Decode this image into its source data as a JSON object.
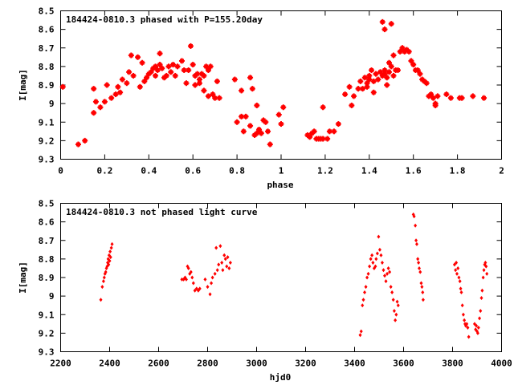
{
  "chart_data": [
    {
      "type": "scatter",
      "title": "184424-0810.3 phased with P=155.20day",
      "xlabel": "phase",
      "ylabel": "I[mag]",
      "xlim": [
        0,
        2
      ],
      "ylim": [
        8.5,
        9.3
      ],
      "y_inverted": true,
      "grid": false,
      "marker_color": "#ff0000",
      "xticks": [
        "0",
        "0.2",
        "0.4",
        "0.6",
        "0.8",
        "1",
        "1.2",
        "1.4",
        "1.6",
        "1.8",
        "2"
      ],
      "yticks": [
        "8.5",
        "8.6",
        "8.7",
        "8.8",
        "8.9",
        "9",
        "9.1",
        "9.2",
        "9.3"
      ],
      "points": [
        [
          0.01,
          8.91
        ],
        [
          0.08,
          9.22
        ],
        [
          0.11,
          9.2
        ],
        [
          0.15,
          8.92
        ],
        [
          0.15,
          9.05
        ],
        [
          0.16,
          8.99
        ],
        [
          0.18,
          9.02
        ],
        [
          0.2,
          8.99
        ],
        [
          0.21,
          8.9
        ],
        [
          0.23,
          8.97
        ],
        [
          0.25,
          8.95
        ],
        [
          0.26,
          8.91
        ],
        [
          0.27,
          8.94
        ],
        [
          0.28,
          8.87
        ],
        [
          0.3,
          8.89
        ],
        [
          0.31,
          8.83
        ],
        [
          0.32,
          8.74
        ],
        [
          0.33,
          8.85
        ],
        [
          0.35,
          8.75
        ],
        [
          0.36,
          8.91
        ],
        [
          0.37,
          8.78
        ],
        [
          0.38,
          8.88
        ],
        [
          0.39,
          8.86
        ],
        [
          0.4,
          8.84
        ],
        [
          0.41,
          8.83
        ],
        [
          0.42,
          8.81
        ],
        [
          0.43,
          8.8
        ],
        [
          0.43,
          8.85
        ],
        [
          0.44,
          8.82
        ],
        [
          0.45,
          8.73
        ],
        [
          0.45,
          8.79
        ],
        [
          0.46,
          8.81
        ],
        [
          0.47,
          8.86
        ],
        [
          0.48,
          8.85
        ],
        [
          0.49,
          8.8
        ],
        [
          0.5,
          8.83
        ],
        [
          0.51,
          8.79
        ],
        [
          0.52,
          8.85
        ],
        [
          0.53,
          8.8
        ],
        [
          0.55,
          8.77
        ],
        [
          0.56,
          8.82
        ],
        [
          0.57,
          8.89
        ],
        [
          0.58,
          8.82
        ],
        [
          0.59,
          8.69
        ],
        [
          0.6,
          8.79
        ],
        [
          0.61,
          8.85
        ],
        [
          0.61,
          8.9
        ],
        [
          0.62,
          8.84
        ],
        [
          0.63,
          8.87
        ],
        [
          0.63,
          8.89
        ],
        [
          0.64,
          8.84
        ],
        [
          0.65,
          8.85
        ],
        [
          0.65,
          8.93
        ],
        [
          0.66,
          8.8
        ],
        [
          0.67,
          8.82
        ],
        [
          0.67,
          8.96
        ],
        [
          0.68,
          8.8
        ],
        [
          0.69,
          8.95
        ],
        [
          0.7,
          8.97
        ],
        [
          0.71,
          8.88
        ],
        [
          0.72,
          8.97
        ],
        [
          0.79,
          8.87
        ],
        [
          0.8,
          9.1
        ],
        [
          0.82,
          9.07
        ],
        [
          0.82,
          8.93
        ],
        [
          0.83,
          9.15
        ],
        [
          0.84,
          9.07
        ],
        [
          0.86,
          8.86
        ],
        [
          0.86,
          9.12
        ],
        [
          0.87,
          8.92
        ],
        [
          0.88,
          9.17
        ],
        [
          0.89,
          9.16
        ],
        [
          0.89,
          9.01
        ],
        [
          0.9,
          9.14
        ],
        [
          0.91,
          9.16
        ],
        [
          0.92,
          9.09
        ],
        [
          0.93,
          9.1
        ],
        [
          0.94,
          9.15
        ],
        [
          0.95,
          9.22
        ],
        [
          0.99,
          9.06
        ],
        [
          1.0,
          9.11
        ],
        [
          1.01,
          9.02
        ],
        [
          1.12,
          9.17
        ],
        [
          1.13,
          9.18
        ],
        [
          1.14,
          9.16
        ],
        [
          1.15,
          9.15
        ],
        [
          1.16,
          9.19
        ],
        [
          1.17,
          9.19
        ],
        [
          1.18,
          9.19
        ],
        [
          1.19,
          9.19
        ],
        [
          1.19,
          9.02
        ],
        [
          1.21,
          9.19
        ],
        [
          1.22,
          9.15
        ],
        [
          1.24,
          9.15
        ],
        [
          1.26,
          9.11
        ],
        [
          1.29,
          8.95
        ],
        [
          1.31,
          8.91
        ],
        [
          1.32,
          9.01
        ],
        [
          1.33,
          8.96
        ],
        [
          1.35,
          8.92
        ],
        [
          1.36,
          8.88
        ],
        [
          1.37,
          8.92
        ],
        [
          1.38,
          8.86
        ],
        [
          1.39,
          8.89
        ],
        [
          1.39,
          8.91
        ],
        [
          1.4,
          8.85
        ],
        [
          1.4,
          8.87
        ],
        [
          1.41,
          8.82
        ],
        [
          1.42,
          8.88
        ],
        [
          1.42,
          8.94
        ],
        [
          1.43,
          8.84
        ],
        [
          1.44,
          8.87
        ],
        [
          1.45,
          8.83
        ],
        [
          1.46,
          8.85
        ],
        [
          1.46,
          8.56
        ],
        [
          1.47,
          8.82
        ],
        [
          1.47,
          8.84
        ],
        [
          1.47,
          8.6
        ],
        [
          1.48,
          8.86
        ],
        [
          1.48,
          8.9
        ],
        [
          1.49,
          8.83
        ],
        [
          1.49,
          8.78
        ],
        [
          1.5,
          8.57
        ],
        [
          1.5,
          8.8
        ],
        [
          1.51,
          8.85
        ],
        [
          1.51,
          8.74
        ],
        [
          1.52,
          8.82
        ],
        [
          1.53,
          8.82
        ],
        [
          1.54,
          8.72
        ],
        [
          1.55,
          8.7
        ],
        [
          1.56,
          8.72
        ],
        [
          1.57,
          8.71
        ],
        [
          1.58,
          8.72
        ],
        [
          1.59,
          8.77
        ],
        [
          1.6,
          8.79
        ],
        [
          1.61,
          8.82
        ],
        [
          1.62,
          8.82
        ],
        [
          1.63,
          8.84
        ],
        [
          1.64,
          8.87
        ],
        [
          1.65,
          8.88
        ],
        [
          1.66,
          8.89
        ],
        [
          1.67,
          8.96
        ],
        [
          1.68,
          8.95
        ],
        [
          1.69,
          8.97
        ],
        [
          1.7,
          9.0
        ],
        [
          1.7,
          9.01
        ],
        [
          1.71,
          8.96
        ],
        [
          1.75,
          8.95
        ],
        [
          1.77,
          8.97
        ],
        [
          1.81,
          8.97
        ],
        [
          1.82,
          8.97
        ],
        [
          1.87,
          8.96
        ],
        [
          1.92,
          8.97
        ]
      ]
    },
    {
      "type": "scatter",
      "title": "184424-0810.3 not phased light curve",
      "xlabel": "hjd0",
      "ylabel": "I[mag]",
      "xlim": [
        2200,
        4000
      ],
      "ylim": [
        8.5,
        9.3
      ],
      "y_inverted": true,
      "grid": false,
      "marker_color": "#ff0000",
      "xticks": [
        "2200",
        "2400",
        "2600",
        "2800",
        "3000",
        "3200",
        "3400",
        "3600",
        "3800",
        "4000"
      ],
      "yticks": [
        "8.5",
        "8.6",
        "8.7",
        "8.8",
        "8.9",
        "9",
        "9.1",
        "9.2",
        "9.3"
      ],
      "points": [
        [
          2364,
          9.02
        ],
        [
          2370,
          8.95
        ],
        [
          2375,
          8.92
        ],
        [
          2378,
          8.9
        ],
        [
          2381,
          8.88
        ],
        [
          2384,
          8.87
        ],
        [
          2387,
          8.85
        ],
        [
          2390,
          8.84
        ],
        [
          2392,
          8.82
        ],
        [
          2394,
          8.8
        ],
        [
          2396,
          8.83
        ],
        [
          2398,
          8.78
        ],
        [
          2400,
          8.81
        ],
        [
          2402,
          8.76
        ],
        [
          2404,
          8.79
        ],
        [
          2407,
          8.74
        ],
        [
          2410,
          8.72
        ],
        [
          2695,
          8.91
        ],
        [
          2702,
          8.91
        ],
        [
          2708,
          8.9
        ],
        [
          2713,
          8.91
        ],
        [
          2718,
          8.84
        ],
        [
          2722,
          8.85
        ],
        [
          2727,
          8.88
        ],
        [
          2732,
          8.87
        ],
        [
          2737,
          8.9
        ],
        [
          2742,
          8.93
        ],
        [
          2748,
          8.97
        ],
        [
          2755,
          8.96
        ],
        [
          2762,
          8.97
        ],
        [
          2768,
          8.96
        ],
        [
          2790,
          8.91
        ],
        [
          2800,
          8.95
        ],
        [
          2810,
          8.99
        ],
        [
          2815,
          8.93
        ],
        [
          2820,
          8.9
        ],
        [
          2830,
          8.88
        ],
        [
          2835,
          8.74
        ],
        [
          2840,
          8.86
        ],
        [
          2845,
          8.83
        ],
        [
          2852,
          8.73
        ],
        [
          2858,
          8.82
        ],
        [
          2862,
          8.86
        ],
        [
          2868,
          8.78
        ],
        [
          2873,
          8.8
        ],
        [
          2878,
          8.84
        ],
        [
          2882,
          8.79
        ],
        [
          2888,
          8.85
        ],
        [
          2893,
          8.82
        ],
        [
          3423,
          9.21
        ],
        [
          3427,
          9.19
        ],
        [
          3432,
          9.05
        ],
        [
          3436,
          9.02
        ],
        [
          3441,
          8.98
        ],
        [
          3446,
          8.95
        ],
        [
          3451,
          8.9
        ],
        [
          3456,
          8.88
        ],
        [
          3461,
          8.84
        ],
        [
          3466,
          8.8
        ],
        [
          3471,
          8.78
        ],
        [
          3475,
          8.82
        ],
        [
          3480,
          8.85
        ],
        [
          3485,
          8.84
        ],
        [
          3488,
          8.8
        ],
        [
          3493,
          8.77
        ],
        [
          3498,
          8.68
        ],
        [
          3503,
          8.75
        ],
        [
          3508,
          8.78
        ],
        [
          3513,
          8.82
        ],
        [
          3518,
          8.86
        ],
        [
          3523,
          8.89
        ],
        [
          3528,
          8.92
        ],
        [
          3533,
          8.88
        ],
        [
          3538,
          8.85
        ],
        [
          3543,
          8.87
        ],
        [
          3548,
          8.95
        ],
        [
          3553,
          8.98
        ],
        [
          3558,
          9.02
        ],
        [
          3562,
          9.08
        ],
        [
          3566,
          9.13
        ],
        [
          3570,
          9.1
        ],
        [
          3574,
          9.03
        ],
        [
          3578,
          9.05
        ],
        [
          3640,
          8.56
        ],
        [
          3643,
          8.57
        ],
        [
          3648,
          8.62
        ],
        [
          3651,
          8.7
        ],
        [
          3654,
          8.72
        ],
        [
          3658,
          8.8
        ],
        [
          3661,
          8.82
        ],
        [
          3664,
          8.85
        ],
        [
          3668,
          8.87
        ],
        [
          3672,
          8.93
        ],
        [
          3675,
          8.95
        ],
        [
          3678,
          8.98
        ],
        [
          3680,
          9.02
        ],
        [
          3808,
          8.83
        ],
        [
          3812,
          8.86
        ],
        [
          3815,
          8.82
        ],
        [
          3818,
          8.88
        ],
        [
          3822,
          8.85
        ],
        [
          3826,
          8.9
        ],
        [
          3830,
          8.92
        ],
        [
          3833,
          8.96
        ],
        [
          3836,
          8.98
        ],
        [
          3840,
          9.05
        ],
        [
          3844,
          9.1
        ],
        [
          3848,
          9.13
        ],
        [
          3851,
          9.15
        ],
        [
          3854,
          9.16
        ],
        [
          3858,
          9.15
        ],
        [
          3862,
          9.17
        ],
        [
          3866,
          9.22
        ],
        [
          3890,
          9.15
        ],
        [
          3894,
          9.18
        ],
        [
          3897,
          9.16
        ],
        [
          3900,
          9.19
        ],
        [
          3903,
          9.2
        ],
        [
          3906,
          9.17
        ],
        [
          3910,
          9.12
        ],
        [
          3914,
          9.08
        ],
        [
          3918,
          9.01
        ],
        [
          3921,
          8.97
        ],
        [
          3925,
          8.9
        ],
        [
          3928,
          8.86
        ],
        [
          3931,
          8.83
        ],
        [
          3934,
          8.82
        ],
        [
          3937,
          8.84
        ],
        [
          3940,
          8.88
        ]
      ]
    }
  ]
}
